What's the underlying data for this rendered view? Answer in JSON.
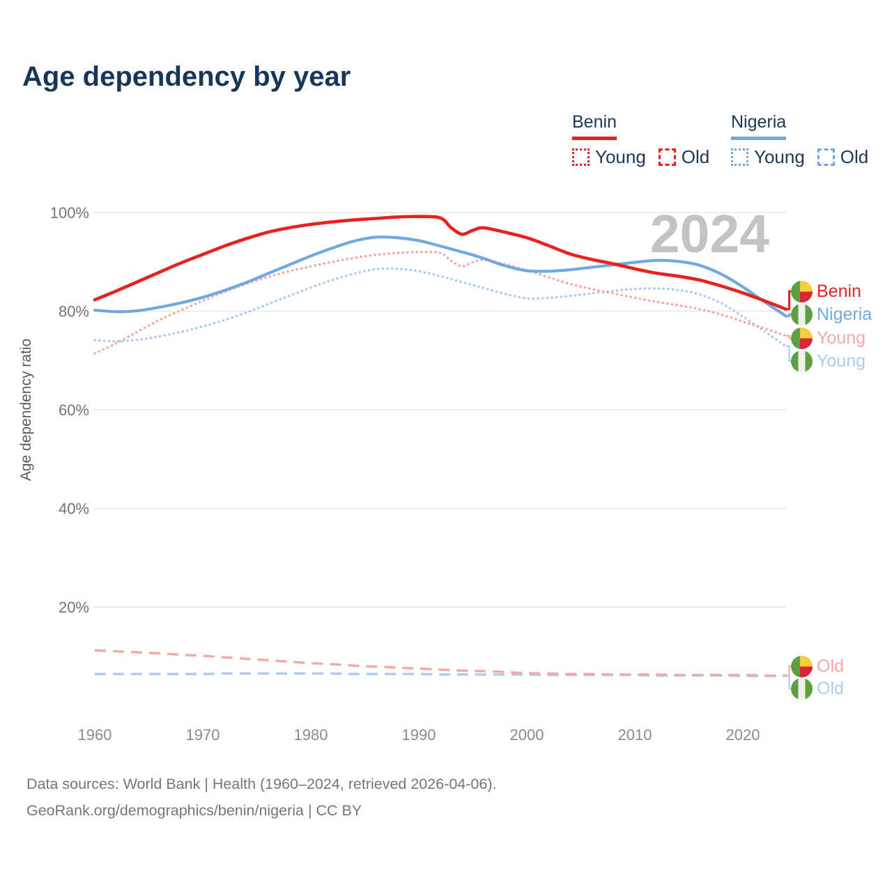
{
  "page": {
    "title": "Age dependency by year",
    "watermark": "2024"
  },
  "legend": {
    "groups": [
      {
        "name": "Benin",
        "color": "#e8211d",
        "items": [
          {
            "label": "Young",
            "dash": "dotted"
          },
          {
            "label": "Old",
            "dash": "dashed"
          }
        ]
      },
      {
        "name": "Nigeria",
        "color": "#70a9e0",
        "items": [
          {
            "label": "Young",
            "dash": "dotted"
          },
          {
            "label": "Old",
            "dash": "dashed"
          }
        ]
      }
    ]
  },
  "axes": {
    "ylabel": "Age dependency ratio",
    "yticks": [
      "100%",
      "80%",
      "60%",
      "40%",
      "20%"
    ],
    "xticks": [
      "1960",
      "1970",
      "1980",
      "1990",
      "2000",
      "2010",
      "2020"
    ]
  },
  "end_labels": {
    "top": [
      {
        "label": "Benin",
        "flag": "benin",
        "series": "benin_total"
      },
      {
        "label": "Nigeria",
        "flag": "nigeria",
        "series": "nigeria_total"
      },
      {
        "label": "Young",
        "flag": "benin",
        "series": "benin_young"
      },
      {
        "label": "Young",
        "flag": "nigeria",
        "series": "nigeria_young"
      }
    ],
    "bottom": [
      {
        "label": "Old",
        "flag": "benin",
        "series": "benin_old"
      },
      {
        "label": "Old",
        "flag": "nigeria",
        "series": "nigeria_old"
      }
    ]
  },
  "flags": {
    "benin": {
      "green": "#5f9e41",
      "yellow": "#f6cf3f",
      "red": "#d82637"
    },
    "nigeria": {
      "green": "#5f9e41",
      "white": "#f1f1ec"
    }
  },
  "footer": {
    "line1": "Data sources: World Bank | Health (1960–2024, retrieved 2026-04-06).",
    "line2": "GeoRank.org/demographics/benin/nigeria | CC BY"
  },
  "chart_data": {
    "type": "line",
    "title": "Age dependency by year",
    "xlabel": "",
    "ylabel": "Age dependency ratio",
    "ylim": [
      0,
      104
    ],
    "xlim": [
      1960,
      2024
    ],
    "grid": "horizontal",
    "legend_position": "top-right",
    "yticks_values": [
      100,
      80,
      60,
      40,
      20
    ],
    "x": [
      1960,
      1962,
      1964,
      1966,
      1968,
      1970,
      1972,
      1974,
      1976,
      1978,
      1980,
      1982,
      1984,
      1986,
      1988,
      1990,
      1992,
      1993,
      1994,
      1995,
      1996,
      1998,
      2000,
      2002,
      2004,
      2006,
      2008,
      2010,
      2012,
      2014,
      2016,
      2018,
      2020,
      2022,
      2024
    ],
    "series": [
      {
        "id": "nigeria_old",
        "name": "Nigeria Old",
        "color": "#abcbf1",
        "dash": "dashed",
        "width": 3.4,
        "values": [
          6.4,
          6.4,
          6.4,
          6.4,
          6.4,
          6.4,
          6.5,
          6.5,
          6.5,
          6.5,
          6.5,
          6.5,
          6.4,
          6.4,
          6.4,
          6.4,
          6.3,
          6.3,
          6.3,
          6.3,
          6.3,
          6.3,
          6.3,
          6.2,
          6.2,
          6.2,
          6.2,
          6.2,
          6.1,
          6.1,
          6.1,
          6.1,
          6.0,
          6.0,
          6.0
        ]
      },
      {
        "id": "benin_old",
        "name": "Benin Old",
        "color": "#f6a8a4",
        "dash": "dashed",
        "width": 3.4,
        "values": [
          11.2,
          11.0,
          10.8,
          10.6,
          10.3,
          10.1,
          9.8,
          9.5,
          9.2,
          8.9,
          8.6,
          8.4,
          8.1,
          7.9,
          7.7,
          7.5,
          7.3,
          7.2,
          7.1,
          7.0,
          7.0,
          6.8,
          6.6,
          6.5,
          6.4,
          6.4,
          6.3,
          6.3,
          6.3,
          6.2,
          6.2,
          6.2,
          6.2,
          6.1,
          6.1
        ]
      },
      {
        "id": "nigeria_young",
        "name": "Nigeria Young",
        "color": "#abcbf1",
        "dash": "dotted",
        "width": 3.4,
        "values": [
          74.1,
          73.9,
          74.2,
          74.9,
          75.8,
          76.9,
          78.2,
          79.7,
          81.4,
          83.1,
          84.8,
          86.3,
          87.6,
          88.5,
          88.6,
          88.1,
          87.1,
          86.5,
          85.9,
          85.3,
          84.7,
          83.5,
          82.6,
          82.7,
          83.1,
          83.6,
          84.1,
          84.5,
          84.6,
          84.3,
          83.4,
          81.6,
          78.9,
          75.9,
          72.9
        ]
      },
      {
        "id": "benin_young",
        "name": "Benin Young",
        "color": "#f6a8a4",
        "dash": "dotted",
        "width": 3.4,
        "values": [
          71.4,
          73.5,
          75.9,
          78.2,
          80.2,
          82.1,
          83.9,
          85.5,
          86.9,
          88.1,
          89.1,
          90.0,
          90.8,
          91.4,
          91.8,
          92.0,
          91.8,
          90.2,
          89.1,
          89.9,
          90.4,
          89.5,
          88.3,
          86.9,
          85.5,
          84.5,
          83.6,
          82.7,
          81.9,
          81.2,
          80.4,
          79.3,
          77.9,
          76.5,
          75.0
        ]
      },
      {
        "id": "nigeria_total",
        "name": "Nigeria",
        "color": "#70a9e0",
        "dash": "solid",
        "width": 4.2,
        "values": [
          80.2,
          79.9,
          80.1,
          80.8,
          81.7,
          82.8,
          84.2,
          85.8,
          87.6,
          89.4,
          91.2,
          92.8,
          94.2,
          95.0,
          94.9,
          94.3,
          93.2,
          92.6,
          92.0,
          91.4,
          90.7,
          89.2,
          88.2,
          88.1,
          88.4,
          88.9,
          89.4,
          89.9,
          90.3,
          90.1,
          89.3,
          87.5,
          84.9,
          81.9,
          79.0
        ]
      },
      {
        "id": "benin_total",
        "name": "Benin",
        "color": "#e8211d",
        "dash": "solid",
        "width": 4.6,
        "values": [
          82.3,
          84.1,
          86.0,
          87.9,
          89.8,
          91.5,
          93.2,
          94.7,
          96.0,
          96.9,
          97.6,
          98.1,
          98.5,
          98.8,
          99.1,
          99.2,
          98.9,
          96.9,
          95.6,
          96.4,
          96.9,
          96.0,
          94.9,
          93.3,
          91.6,
          90.5,
          89.6,
          88.6,
          87.7,
          87.1,
          86.3,
          85.1,
          83.7,
          82.1,
          80.4
        ]
      }
    ]
  }
}
